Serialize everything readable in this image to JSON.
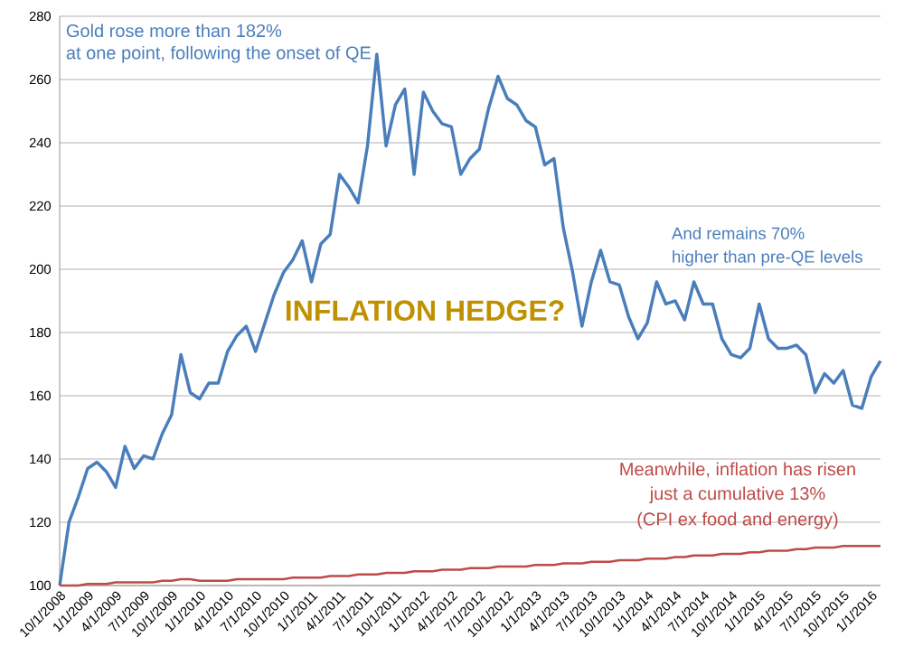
{
  "chart_data": {
    "type": "line",
    "categories": [
      "10/1/2008",
      null,
      null,
      "1/1/2009",
      null,
      null,
      "4/1/2009",
      null,
      null,
      "7/1/2009",
      null,
      null,
      "10/1/2009",
      null,
      null,
      "1/1/2010",
      null,
      null,
      "4/1/2010",
      null,
      null,
      "7/1/2010",
      null,
      null,
      "10/1/2010",
      null,
      null,
      "1/1/2011",
      null,
      null,
      "4/1/2011",
      null,
      null,
      "7/1/2011",
      null,
      null,
      "10/1/2011",
      null,
      null,
      "1/1/2012",
      null,
      null,
      "4/1/2012",
      null,
      null,
      "7/1/2012",
      null,
      null,
      "10/1/2012",
      null,
      null,
      "1/1/2013",
      null,
      null,
      "4/1/2013",
      null,
      null,
      "7/1/2013",
      null,
      null,
      "10/1/2013",
      null,
      null,
      "1/1/2014",
      null,
      null,
      "4/1/2014",
      null,
      null,
      "7/1/2014",
      null,
      null,
      "10/1/2014",
      null,
      null,
      "1/1/2015",
      null,
      null,
      "4/1/2015",
      null,
      null,
      "7/1/2015",
      null,
      null,
      "10/1/2015",
      null,
      null,
      "1/1/2016",
      null
    ],
    "series": [
      {
        "color": "#4a7ebb",
        "values": [
          100,
          120,
          128,
          137,
          139,
          136,
          131,
          144,
          137,
          141,
          140,
          148,
          154,
          173,
          161,
          159,
          164,
          164,
          174,
          179,
          182,
          174,
          183,
          192,
          199,
          203,
          209,
          196,
          208,
          211,
          230,
          226,
          221,
          239,
          268,
          239,
          252,
          257,
          230,
          256,
          250,
          246,
          245,
          230,
          235,
          238,
          251,
          261,
          254,
          252,
          247,
          245,
          233,
          235,
          213,
          199,
          182,
          196,
          206,
          196,
          195,
          185,
          178,
          183,
          196,
          189,
          190,
          184,
          196,
          189,
          189,
          178,
          173,
          172,
          175,
          189,
          178,
          175,
          175,
          176,
          173,
          161,
          167,
          164,
          168,
          157,
          156,
          166,
          171
        ]
      },
      {
        "color": "#be4b48",
        "values": [
          100,
          100,
          100,
          100.5,
          100.5,
          100.5,
          101,
          101,
          101,
          101,
          101,
          101.5,
          101.5,
          102,
          102,
          101.5,
          101.5,
          101.5,
          101.5,
          102,
          102,
          102,
          102,
          102,
          102,
          102.5,
          102.5,
          102.5,
          102.5,
          103,
          103,
          103,
          103.5,
          103.5,
          103.5,
          104,
          104,
          104,
          104.5,
          104.5,
          104.5,
          105,
          105,
          105,
          105.5,
          105.5,
          105.5,
          106,
          106,
          106,
          106,
          106.5,
          106.5,
          106.5,
          107,
          107,
          107,
          107.5,
          107.5,
          107.5,
          108,
          108,
          108,
          108.5,
          108.5,
          108.5,
          109,
          109,
          109.5,
          109.5,
          109.5,
          110,
          110,
          110,
          110.5,
          110.5,
          111,
          111,
          111,
          111.5,
          111.5,
          112,
          112,
          112,
          112.5,
          112.5,
          112.5,
          112.5,
          112.5
        ]
      }
    ],
    "ylim": [
      100,
      280
    ],
    "yticks": [
      100,
      120,
      140,
      160,
      180,
      200,
      220,
      240,
      260,
      280
    ],
    "grid": "y",
    "annotations": [
      "Gold rose more than 182%",
      "at one point, following the onset of QE",
      "INFLATION HEDGE?",
      "And remains 70%",
      "higher than pre-QE levels",
      "Meanwhile, inflation has risen",
      "just a cumulative 13%",
      "(CPI ex food and energy)"
    ]
  }
}
